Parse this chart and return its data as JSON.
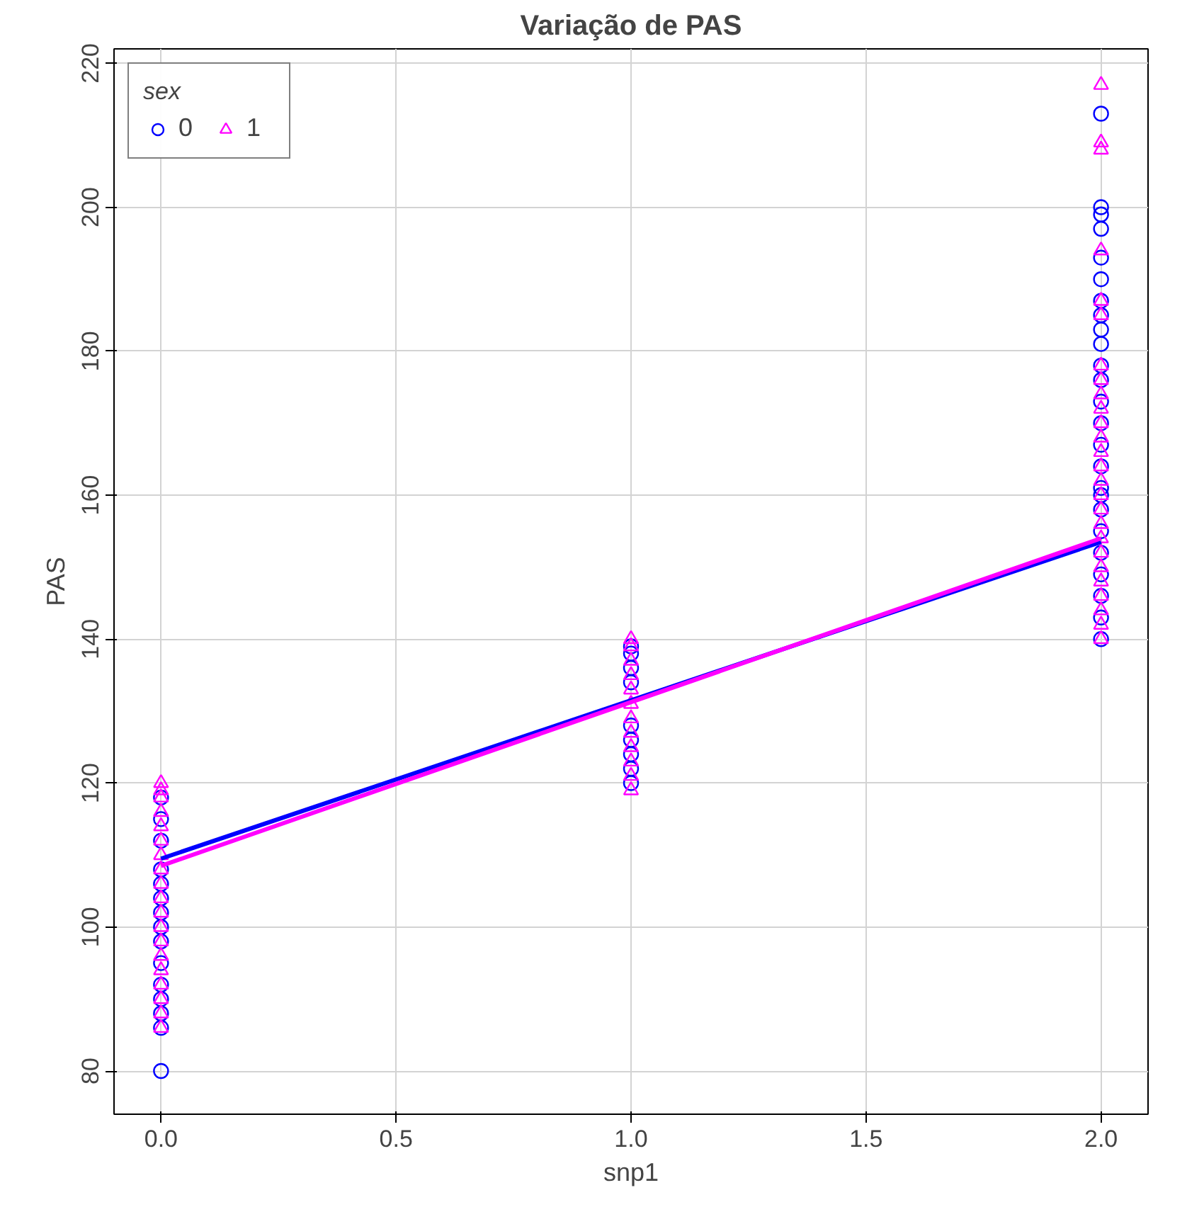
{
  "chart_data": {
    "type": "scatter",
    "title": "Variação de PAS",
    "xlabel": "snp1",
    "ylabel": "PAS",
    "legend_title": "sex",
    "legend": "top left",
    "grid": true,
    "xlim": [
      -0.1,
      2.1
    ],
    "ylim": [
      74,
      222
    ],
    "xticks": [
      {
        "value": 0,
        "label": "0.0"
      },
      {
        "value": 0.5,
        "label": "0.5"
      },
      {
        "value": 1,
        "label": "1.0"
      },
      {
        "value": 1.5,
        "label": "1.5"
      },
      {
        "value": 2,
        "label": "2.0"
      }
    ],
    "yticks": [
      80,
      100,
      120,
      140,
      160,
      180,
      200,
      220
    ],
    "series": [
      {
        "name": "0",
        "color": "#0000ff",
        "marker": "circle",
        "x": [
          0,
          0,
          0,
          0,
          0,
          0,
          0,
          0,
          0,
          0,
          0,
          0,
          0,
          0,
          0,
          1,
          1,
          1,
          1,
          1,
          1,
          1,
          1,
          1,
          2,
          2,
          2,
          2,
          2,
          2,
          2,
          2,
          2,
          2,
          2,
          2,
          2,
          2,
          2,
          2,
          2,
          2,
          2,
          2,
          2,
          2,
          2,
          2,
          2
        ],
        "values": [
          80,
          86,
          88,
          90,
          92,
          95,
          98,
          100,
          102,
          104,
          106,
          108,
          112,
          115,
          118,
          120,
          122,
          124,
          126,
          128,
          134,
          136,
          138,
          139,
          140,
          143,
          146,
          149,
          152,
          155,
          158,
          161,
          164,
          167,
          170,
          173,
          176,
          178,
          181,
          183,
          185,
          187,
          190,
          193,
          197,
          199,
          200,
          213,
          160
        ]
      },
      {
        "name": "1",
        "color": "#ff00ff",
        "marker": "triangle",
        "x": [
          0,
          0,
          0,
          0,
          0,
          0,
          0,
          0,
          0,
          0,
          0,
          0,
          0,
          0,
          0,
          0,
          0,
          0,
          0,
          1,
          1,
          1,
          1,
          1,
          1,
          1,
          1,
          1,
          1,
          1,
          1,
          2,
          2,
          2,
          2,
          2,
          2,
          2,
          2,
          2,
          2,
          2,
          2,
          2,
          2,
          2,
          2,
          2,
          2,
          2,
          2,
          2,
          2,
          2,
          2,
          2,
          2
        ],
        "values": [
          86,
          88,
          90,
          92,
          94,
          96,
          98,
          100,
          102,
          104,
          106,
          108,
          110,
          112,
          114,
          116,
          118,
          119,
          120,
          119,
          121,
          123,
          125,
          127,
          129,
          131,
          133,
          135,
          137,
          139,
          140,
          140,
          142,
          144,
          146,
          148,
          150,
          152,
          154,
          156,
          158,
          160,
          162,
          164,
          166,
          168,
          170,
          172,
          174,
          176,
          178,
          185,
          187,
          194,
          208,
          209,
          217
        ]
      },
      {
        "type": "line",
        "color": "#0000ff",
        "x": [
          0,
          2
        ],
        "values": [
          109.5,
          153.5
        ]
      },
      {
        "type": "line",
        "color": "#ff00ff",
        "x": [
          0,
          2
        ],
        "values": [
          108.5,
          154
        ]
      }
    ]
  }
}
